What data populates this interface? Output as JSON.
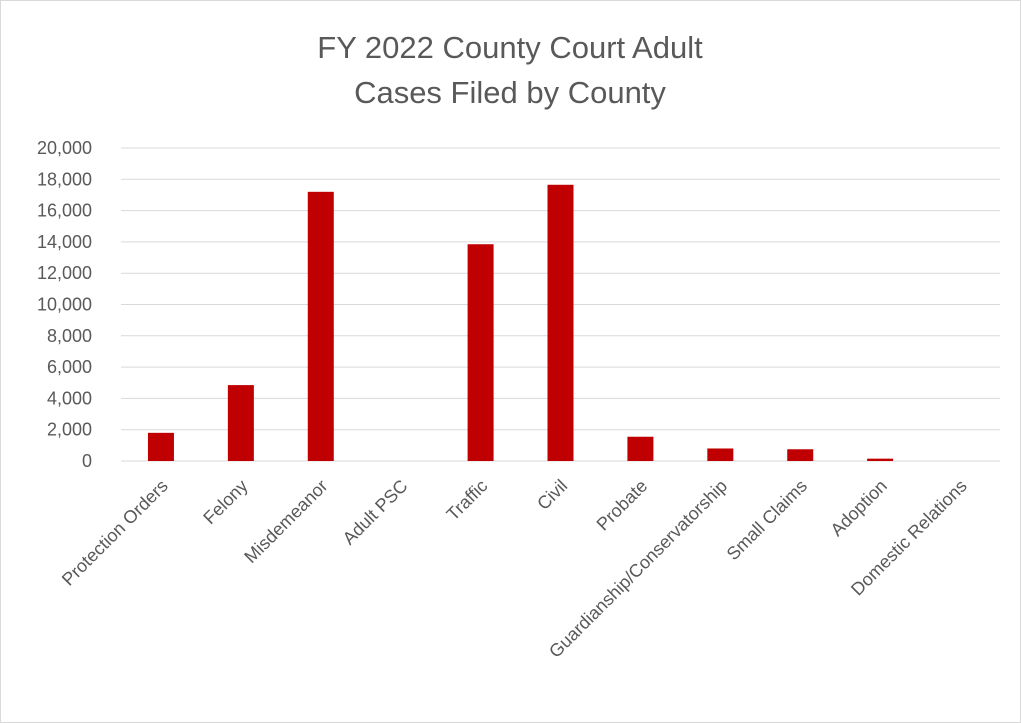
{
  "chart_data": {
    "type": "bar",
    "title_lines": [
      "FY 2022 County Court Adult",
      "Cases Filed by County"
    ],
    "xlabel": "",
    "ylabel": "",
    "categories": [
      "Protection Orders",
      "Felony",
      "Misdemeanor",
      "Adult PSC",
      "Traffic",
      "Civil",
      "Probate",
      "Guardianship/Conservatorship",
      "Small Claims",
      "Adoption",
      "Domestic Relations"
    ],
    "values": [
      1800,
      4850,
      17200,
      0,
      13850,
      17650,
      1550,
      800,
      750,
      150,
      0
    ],
    "ylim": [
      0,
      20000
    ],
    "y_ticks": [
      0,
      2000,
      4000,
      6000,
      8000,
      10000,
      12000,
      14000,
      16000,
      18000,
      20000
    ],
    "y_tick_labels": [
      "0",
      "2,000",
      "4,000",
      "6,000",
      "8,000",
      "10,000",
      "12,000",
      "14,000",
      "16,000",
      "18,000",
      "20,000"
    ],
    "grid": true,
    "legend": "none",
    "bar_color": "#C00000"
  }
}
